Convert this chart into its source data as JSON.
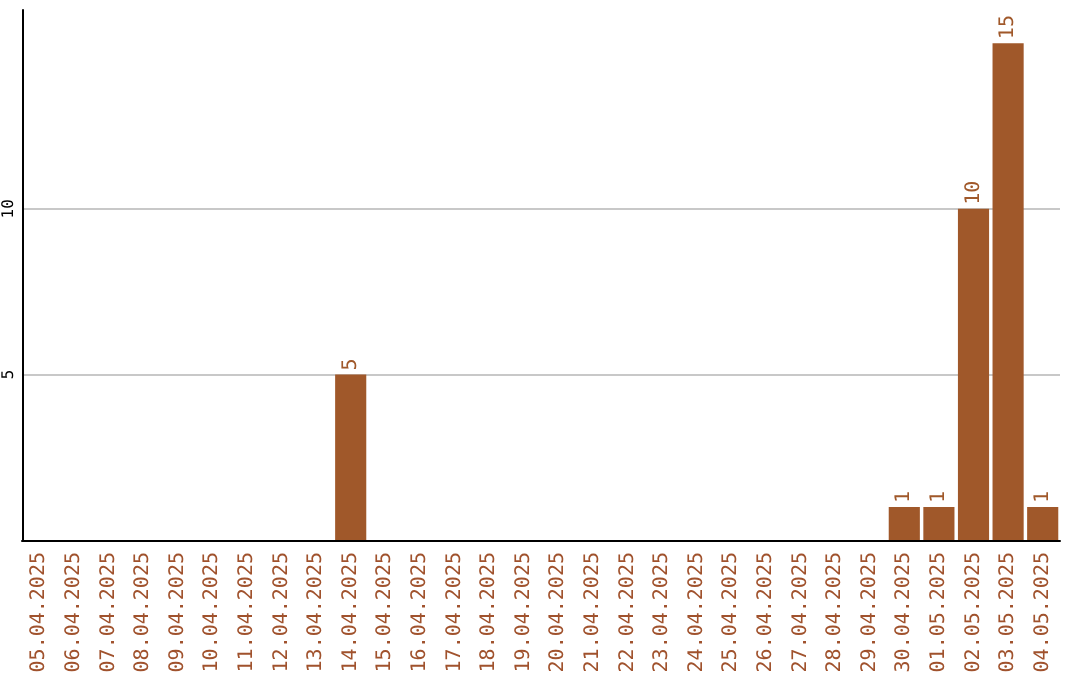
{
  "chart_data": {
    "type": "bar",
    "categories": [
      "05.04.2025",
      "06.04.2025",
      "07.04.2025",
      "08.04.2025",
      "09.04.2025",
      "10.04.2025",
      "11.04.2025",
      "12.04.2025",
      "13.04.2025",
      "14.04.2025",
      "15.04.2025",
      "16.04.2025",
      "17.04.2025",
      "18.04.2025",
      "19.04.2025",
      "20.04.2025",
      "21.04.2025",
      "22.04.2025",
      "23.04.2025",
      "24.04.2025",
      "25.04.2025",
      "26.04.2025",
      "27.04.2025",
      "28.04.2025",
      "29.04.2025",
      "30.04.2025",
      "01.05.2025",
      "02.05.2025",
      "03.05.2025",
      "04.05.2025"
    ],
    "values": [
      0,
      0,
      0,
      0,
      0,
      0,
      0,
      0,
      0,
      5,
      0,
      0,
      0,
      0,
      0,
      0,
      0,
      0,
      0,
      0,
      0,
      0,
      0,
      0,
      0,
      1,
      1,
      10,
      15,
      1
    ],
    "value_labels": [
      null,
      null,
      null,
      null,
      null,
      null,
      null,
      null,
      null,
      "5",
      null,
      null,
      null,
      null,
      null,
      null,
      null,
      null,
      null,
      null,
      null,
      null,
      null,
      null,
      null,
      "1",
      "1",
      "10",
      "15",
      "1"
    ],
    "color": "#a0582a",
    "ylim": [
      0,
      16
    ],
    "yticks": [
      5,
      10
    ],
    "grid": "y"
  }
}
